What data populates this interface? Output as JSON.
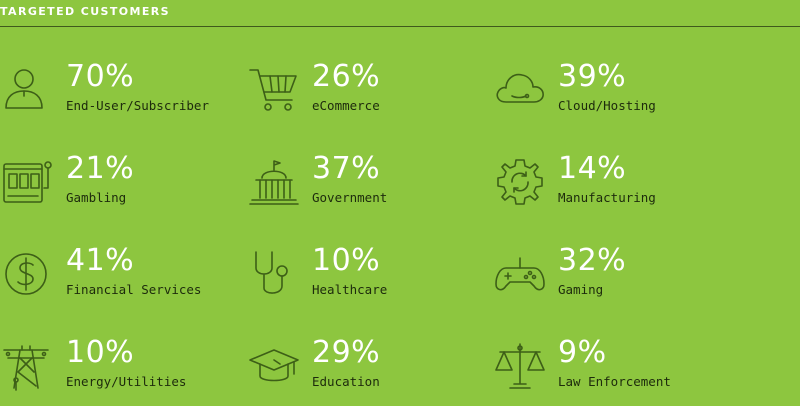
{
  "header": {
    "title": "TARGETED CUSTOMERS"
  },
  "chart_data": {
    "type": "table",
    "title": "TARGETED CUSTOMERS",
    "items": [
      {
        "label": "End-User/Subscriber",
        "value": "70%",
        "icon": "user-icon"
      },
      {
        "label": "eCommerce",
        "value": "26%",
        "icon": "shopping-cart-icon"
      },
      {
        "label": "Cloud/Hosting",
        "value": "39%",
        "icon": "cloud-icon"
      },
      {
        "label": "Gambling",
        "value": "21%",
        "icon": "slot-machine-icon"
      },
      {
        "label": "Government",
        "value": "37%",
        "icon": "government-building-icon"
      },
      {
        "label": "Manufacturing",
        "value": "14%",
        "icon": "gear-icon"
      },
      {
        "label": "Financial Services",
        "value": "41%",
        "icon": "dollar-coin-icon"
      },
      {
        "label": "Healthcare",
        "value": "10%",
        "icon": "stethoscope-icon"
      },
      {
        "label": "Gaming",
        "value": "32%",
        "icon": "game-controller-icon"
      },
      {
        "label": "Energy/Utilities",
        "value": "10%",
        "icon": "power-tower-icon"
      },
      {
        "label": "Education",
        "value": "29%",
        "icon": "graduation-cap-icon"
      },
      {
        "label": "Law Enforcement",
        "value": "9%",
        "icon": "scales-of-justice-icon"
      }
    ]
  },
  "colors": {
    "background": "#8dc63f",
    "value_text": "#ffffff",
    "label_text": "#1d2b0c",
    "icon_stroke": "#3d5f17"
  }
}
